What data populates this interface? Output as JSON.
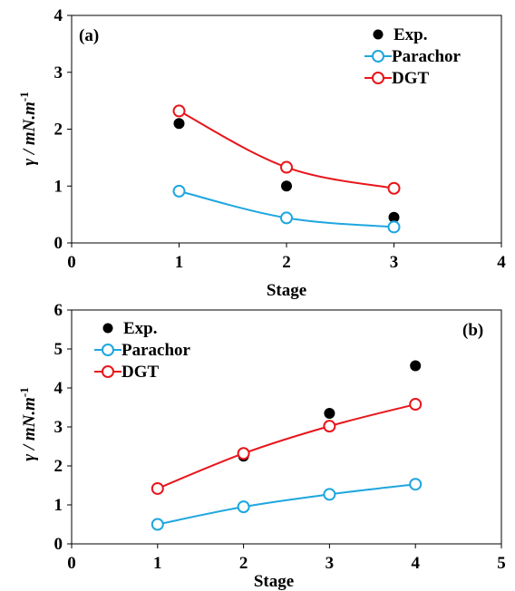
{
  "colors": {
    "exp": "#000000",
    "parachor": "#1EA6DF",
    "dgt": "#E8151B"
  },
  "chart_data": [
    {
      "type": "scatter",
      "panel_label": "(a)",
      "xlabel": "Stage",
      "ylabel": "γ / mN.m",
      "ylabel_sup": "-1",
      "xlim": [
        0,
        4
      ],
      "ylim": [
        0,
        4
      ],
      "xticks": [
        "0",
        "1",
        "2",
        "3",
        "4"
      ],
      "yticks": [
        "0",
        "1",
        "2",
        "3",
        "4"
      ],
      "legend_position": "top-right",
      "series": [
        {
          "name": "Exp.",
          "style": "filled-marker",
          "x": [
            1,
            2,
            3
          ],
          "y": [
            2.1,
            1.0,
            0.45
          ]
        },
        {
          "name": "Parachor",
          "style": "open-marker-line",
          "x": [
            1,
            2,
            3
          ],
          "y": [
            0.91,
            0.44,
            0.28
          ]
        },
        {
          "name": "DGT",
          "style": "open-marker-line",
          "x": [
            1,
            2,
            3
          ],
          "y": [
            2.32,
            1.33,
            0.96
          ]
        }
      ]
    },
    {
      "type": "scatter",
      "panel_label": "(b)",
      "xlabel": "Stage",
      "ylabel": "γ / mN.m",
      "ylabel_sup": "-1",
      "xlim": [
        0,
        5
      ],
      "ylim": [
        0,
        6
      ],
      "xticks": [
        "0",
        "1",
        "2",
        "3",
        "4",
        "5"
      ],
      "yticks": [
        "0",
        "1",
        "2",
        "3",
        "4",
        "5",
        "6"
      ],
      "legend_position": "top-left",
      "series": [
        {
          "name": "Exp.",
          "style": "filled-marker",
          "x": [
            2,
            3,
            4
          ],
          "y": [
            2.25,
            3.35,
            4.57
          ]
        },
        {
          "name": "Parachor",
          "style": "open-marker-line",
          "x": [
            1,
            2,
            3,
            4
          ],
          "y": [
            0.5,
            0.95,
            1.27,
            1.53
          ]
        },
        {
          "name": "DGT",
          "style": "open-marker-line",
          "x": [
            1,
            2,
            3,
            4
          ],
          "y": [
            1.42,
            2.32,
            3.02,
            3.58
          ]
        }
      ]
    }
  ]
}
